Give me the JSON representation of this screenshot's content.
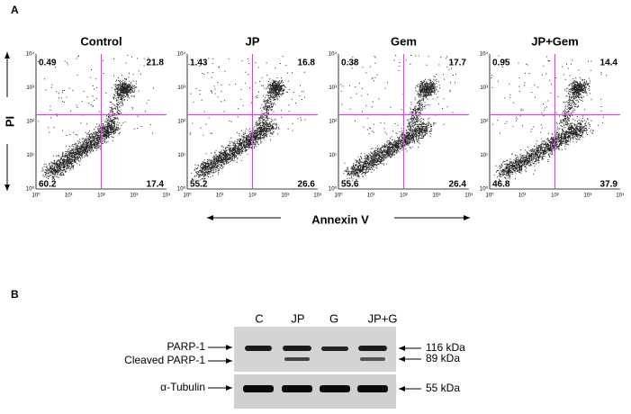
{
  "panel_a": {
    "label": "A",
    "y_axis_label": "PI",
    "x_axis_label": "Annexin V",
    "axis_ticks": [
      "10⁰",
      "10¹",
      "10²",
      "10³",
      "10⁴"
    ],
    "plots": [
      {
        "title": "Control",
        "upper_left": 0.49,
        "upper_right": 21.8,
        "lower_left": 60.2,
        "lower_right": 17.4
      },
      {
        "title": "JP",
        "upper_left": 1.43,
        "upper_right": 16.8,
        "lower_left": 55.2,
        "lower_right": 26.6
      },
      {
        "title": "Gem",
        "upper_left": 0.38,
        "upper_right": 17.7,
        "lower_left": 55.6,
        "lower_right": 26.4
      },
      {
        "title": "JP+Gem",
        "upper_left": 0.95,
        "upper_right": 14.4,
        "lower_left": 46.8,
        "lower_right": 37.9
      }
    ]
  },
  "panel_b": {
    "label": "B",
    "lanes": [
      "C",
      "JP",
      "G",
      "JP+G"
    ],
    "left_labels": [
      "PARP-1",
      "Cleaved PARP-1",
      "α-Tubulin"
    ],
    "right_labels": [
      "116 kDa",
      "89 kDa",
      "55 kDa"
    ]
  }
}
